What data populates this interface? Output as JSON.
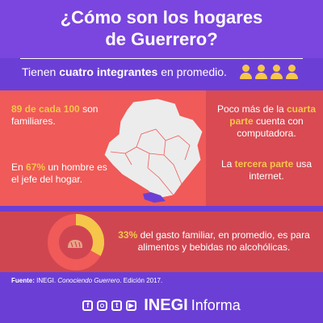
{
  "header": {
    "title_line1": "¿Cómo son los hogares",
    "title_line2": "de Guerrero?"
  },
  "subbar": {
    "text_before": "Tienen ",
    "text_bold": "cuatro integrantes",
    "text_after": " en promedio."
  },
  "stat_families": {
    "highlight": "89 de cada 100",
    "text": "son familiares."
  },
  "stat_head": {
    "text_before": "En ",
    "highlight": "67%",
    "text_after": " un hombre es el jefe del hogar."
  },
  "stat_computer": {
    "text_before": "Poco más de la ",
    "highlight": "cuarta parte",
    "text_after": " cuenta con computadora."
  },
  "stat_internet": {
    "text_before": "La ",
    "highlight": "tercera parte",
    "text_after": " usa internet."
  },
  "stat_spend": {
    "highlight": "33%",
    "text_after": " del gasto familiar, en promedio, es para alimentos y bebidas no alcohólicas."
  },
  "spend_fraction": 0.33,
  "source": {
    "label": "Fuente:",
    "text": " INEGI. ",
    "italic": "Conociendo Guerrero",
    "text_after": ". Edición 2017."
  },
  "footer": {
    "brand": "INEGI",
    "brand_suffix": "Informa"
  },
  "icons": [
    "person-icon",
    "facebook-icon",
    "instagram-icon",
    "twitter-icon",
    "youtube-icon",
    "bread-icon"
  ],
  "colors": {
    "purple": "#7b45e0",
    "coral": "#f05a58",
    "red": "#cf4651",
    "yellow": "#f5c64a"
  }
}
